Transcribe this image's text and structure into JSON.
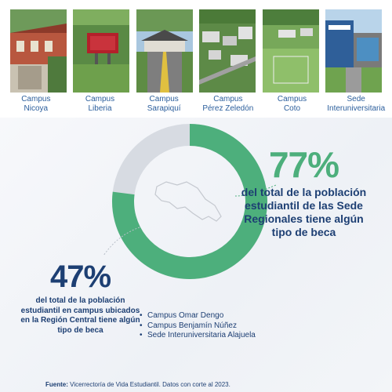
{
  "campuses": [
    {
      "line1": "Campus",
      "line2": "Nicoya",
      "photo": "building-photo"
    },
    {
      "line1": "Campus",
      "line2": "Liberia",
      "photo": "sign-photo"
    },
    {
      "line1": "Campus",
      "line2": "Sarapiquí",
      "photo": "entrance-photo"
    },
    {
      "line1": "Campus",
      "line2": "Pérez Zeledón",
      "photo": "aerial-photo"
    },
    {
      "line1": "Campus",
      "line2": "Coto",
      "photo": "field-photo"
    },
    {
      "line1": "Sede",
      "line2": "Interuniversitaria",
      "photo": "building-photo"
    }
  ],
  "regional": {
    "percent": "77%",
    "value": 77,
    "text": "del total de la población estudiantil de las Sede Regionales tiene algún tipo de beca",
    "color": "#4daf7c"
  },
  "central": {
    "percent": "47%",
    "value": 47,
    "text": "del total de la población estudiantil en campus ubicados en la Región Central tiene algún tipo de beca",
    "color": "#d7dbe2"
  },
  "central_campuses": [
    "Campus Omar Dengo",
    "Campus Benjamín Núñez",
    "Sede Interuniversitaria Alajuela"
  ],
  "source": {
    "label": "Fuente:",
    "text": "Vicerrectoría de Vida Estudiantil. Datos con corte al 2023."
  },
  "colors": {
    "green": "#4daf7c",
    "navy": "#1d3f73",
    "label_blue": "#2b5e9c",
    "gray_ring": "#d7dbe2"
  }
}
